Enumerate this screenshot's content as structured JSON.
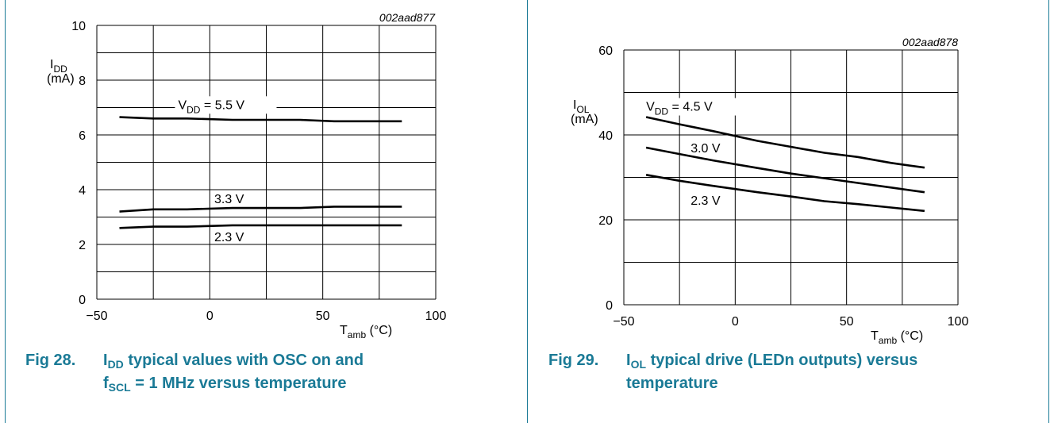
{
  "chart_data": [
    {
      "type": "line",
      "id": "002aad877",
      "ylabel": "I",
      "ylabel_sub": "DD",
      "yunit": "(mA)",
      "xlabel": "T",
      "xlabel_sub": "amb",
      "xunit": "(°C)",
      "xlim": [
        -50,
        100
      ],
      "ylim": [
        0,
        10
      ],
      "x_ticks": [
        "−50",
        "0",
        "50",
        "100"
      ],
      "x_tick_values": [
        -50,
        0,
        50,
        100
      ],
      "y_ticks": [
        "0",
        "2",
        "4",
        "6",
        "8",
        "10"
      ],
      "y_tick_values": [
        0,
        2,
        4,
        6,
        8,
        10
      ],
      "grid": true,
      "series": [
        {
          "name": "V",
          "name_sub": "DD",
          "name_suffix": " = 5.5 V",
          "x": [
            -40,
            -25,
            -10,
            10,
            25,
            40,
            55,
            70,
            85
          ],
          "y": [
            6.65,
            6.6,
            6.6,
            6.55,
            6.55,
            6.55,
            6.5,
            6.5,
            6.5
          ]
        },
        {
          "name": "3.3 V",
          "name_sub": "",
          "name_suffix": "",
          "x": [
            -40,
            -25,
            -10,
            10,
            25,
            40,
            55,
            70,
            85
          ],
          "y": [
            3.2,
            3.28,
            3.28,
            3.33,
            3.33,
            3.33,
            3.38,
            3.38,
            3.38
          ]
        },
        {
          "name": "2.3 V",
          "name_sub": "",
          "name_suffix": "",
          "x": [
            -40,
            -25,
            -10,
            10,
            25,
            40,
            55,
            70,
            85
          ],
          "y": [
            2.6,
            2.65,
            2.65,
            2.7,
            2.7,
            2.7,
            2.7,
            2.7,
            2.7
          ]
        }
      ],
      "caption": {
        "fig": "Fig 28.",
        "pre": "I",
        "pre_sub": "DD",
        "line1_rest": " typical values with OSC on and",
        "line2_pre": "f",
        "line2_sub": "SCL",
        "line2_rest": " = 1 MHz versus temperature"
      }
    },
    {
      "type": "line",
      "id": "002aad878",
      "ylabel": "I",
      "ylabel_sub": "OL",
      "yunit": "(mA)",
      "xlabel": "T",
      "xlabel_sub": "amb",
      "xunit": "(°C)",
      "xlim": [
        -50,
        100
      ],
      "ylim": [
        0,
        60
      ],
      "x_ticks": [
        "−50",
        "0",
        "50",
        "100"
      ],
      "x_tick_values": [
        -50,
        0,
        50,
        100
      ],
      "y_ticks": [
        "0",
        "20",
        "40",
        "60"
      ],
      "y_tick_values": [
        0,
        20,
        40,
        60
      ],
      "grid": true,
      "series": [
        {
          "name": "V",
          "name_sub": "DD",
          "name_suffix": " = 4.5 V",
          "x": [
            -40,
            -25,
            -10,
            10,
            25,
            40,
            55,
            70,
            85
          ],
          "y": [
            44.2,
            42.5,
            40.9,
            38.6,
            37.2,
            35.8,
            34.8,
            33.4,
            32.3
          ]
        },
        {
          "name": "3.0 V",
          "name_sub": "",
          "name_suffix": "",
          "x": [
            -40,
            -25,
            -10,
            10,
            25,
            40,
            55,
            70,
            85
          ],
          "y": [
            37.0,
            35.5,
            34.0,
            32.2,
            30.9,
            29.8,
            28.7,
            27.6,
            26.5
          ]
        },
        {
          "name": "2.3 V",
          "name_sub": "",
          "name_suffix": "",
          "x": [
            -40,
            -25,
            -10,
            10,
            25,
            40,
            55,
            70,
            85
          ],
          "y": [
            30.6,
            29.2,
            28.0,
            26.5,
            25.5,
            24.4,
            23.7,
            22.9,
            22.1
          ]
        }
      ],
      "caption": {
        "fig": "Fig 29.",
        "pre": "I",
        "pre_sub": "OL",
        "line1_rest": " typical drive (LEDn outputs) versus",
        "line2_pre": "",
        "line2_sub": "",
        "line2_rest": "temperature"
      }
    }
  ],
  "colors": {
    "caption": "#1a7a96",
    "frame": "#1a7a96",
    "grid": "#000000",
    "series": "#000000"
  }
}
